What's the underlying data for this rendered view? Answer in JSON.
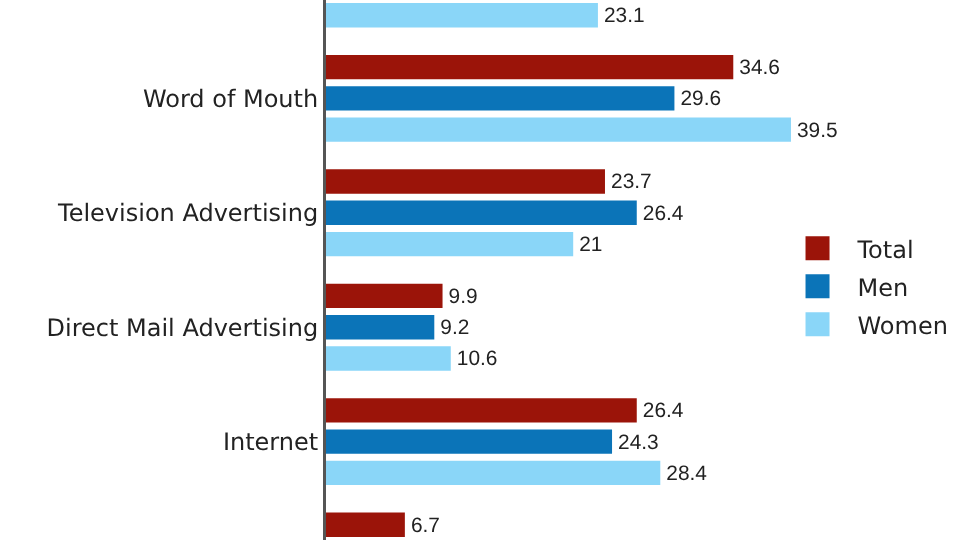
{
  "chart_data": {
    "type": "bar",
    "orientation": "horizontal",
    "categories": [
      null,
      "Word of Mouth",
      "Television Advertising",
      "Direct Mail Advertising",
      "Internet",
      null
    ],
    "series": [
      {
        "name": "Total",
        "color": "#9b1409",
        "values": [
          null,
          34.6,
          23.7,
          9.9,
          26.4,
          6.7
        ]
      },
      {
        "name": "Men",
        "color": "#0b74b8",
        "values": [
          null,
          29.6,
          26.4,
          9.2,
          24.3,
          null
        ]
      },
      {
        "name": "Women",
        "color": "#8ad6f8",
        "values": [
          23.1,
          39.5,
          21,
          10.6,
          28.4,
          null
        ]
      }
    ],
    "data_labels": true,
    "legend": "right",
    "grid": false
  }
}
